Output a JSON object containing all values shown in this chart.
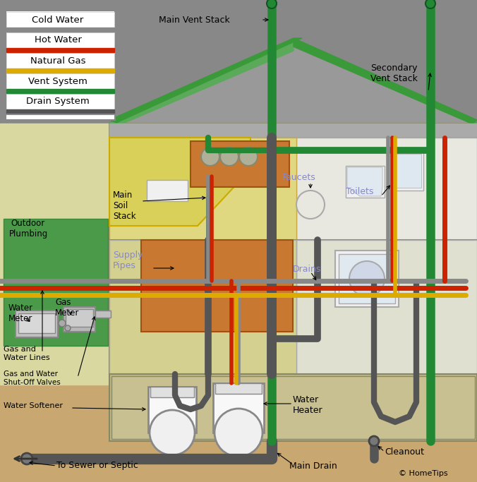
{
  "bg_outer": "#c8a870",
  "bg_gray_sky": "#888888",
  "bg_roof_attic": "#7a7a7a",
  "bg_green_insulation": "#5aaa5a",
  "bg_lawn": "#4a9a4a",
  "bg_yellow_wall": "#d8d890",
  "bg_basement_gray": "#b8b8a0",
  "bg_basement_inner": "#c0b888",
  "bg_tan_ground": "#c8a870",
  "bg_brown_kitchen": "#b87830",
  "bg_light_room": "#e8e8d8",
  "bg_white": "#ffffff",
  "cold_water_color": "#888888",
  "hot_water_color": "#cc2200",
  "gas_color": "#ddaa00",
  "vent_color": "#228833",
  "drain_color": "#555555",
  "legend_items": [
    {
      "label": "Cold Water",
      "color": "#888888"
    },
    {
      "label": "Hot Water",
      "color": "#cc2200"
    },
    {
      "label": "Natural Gas",
      "color": "#ddaa00"
    },
    {
      "label": "Vent System",
      "color": "#228833"
    },
    {
      "label": "Drain System",
      "color": "#555555"
    }
  ],
  "labels": {
    "main_vent_stack": "Main Vent Stack",
    "secondary_vent_stack": "Secondary\nVent Stack",
    "main_soil_stack": "Main\nSoil\nStack",
    "supply_pipes": "Supply\nPipes",
    "faucets": "Faucets",
    "toilets": "Toilets",
    "drains": "Drains",
    "water_heater": "Water\nHeater",
    "outdoor_plumbing": "Outdoor\nPlumbing",
    "water_meter": "Water\nMeter",
    "gas_meter": "Gas\nMeter",
    "gas_water_lines": "Gas and\nWater Lines",
    "gas_water_shutoff": "Gas and Water\nShut-Off Valves",
    "water_softener": "Water Softener",
    "to_sewer": "To Sewer or Septic",
    "main_drain": "Main Drain",
    "cleanout": "Cleanout",
    "copyright": "© HomeTips"
  }
}
